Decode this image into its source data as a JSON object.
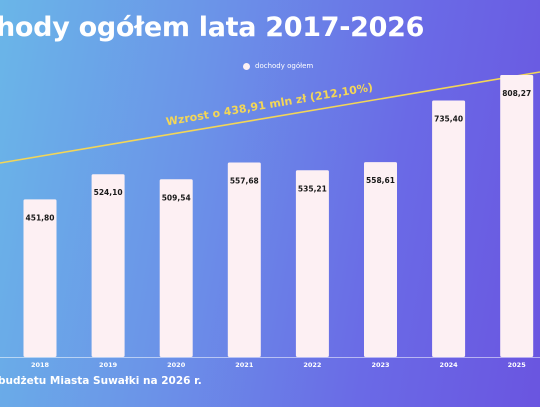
{
  "header": {
    "title": "hody ogółem lata 2017-2026"
  },
  "legend": {
    "label": "dochody ogółem"
  },
  "footer": {
    "text": "budżetu Miasta Suwałki na 2026 r."
  },
  "colors": {
    "bar": "#fdf0f3",
    "trend_line": "#f3d657",
    "trend_text": "#f3d657",
    "baseline": "#ffffff"
  },
  "chart_data": {
    "type": "bar",
    "categories": [
      "2018",
      "2019",
      "2020",
      "2021",
      "2022",
      "2023",
      "2024",
      "2025"
    ],
    "series": [
      {
        "name": "dochody ogółem",
        "values": [
          451.8,
          524.1,
          509.54,
          557.68,
          535.21,
          558.61,
          735.4,
          808.27
        ],
        "labels": [
          "451,80",
          "524,10",
          "509,54",
          "557,68",
          "535,21",
          "558,61",
          "735,40",
          "808,27"
        ]
      }
    ],
    "annotation": "Wzrost o 438,91 mln zł (212,10%)",
    "ylim": [
      0,
      860
    ],
    "grid": false,
    "legend_position": "top-center"
  }
}
